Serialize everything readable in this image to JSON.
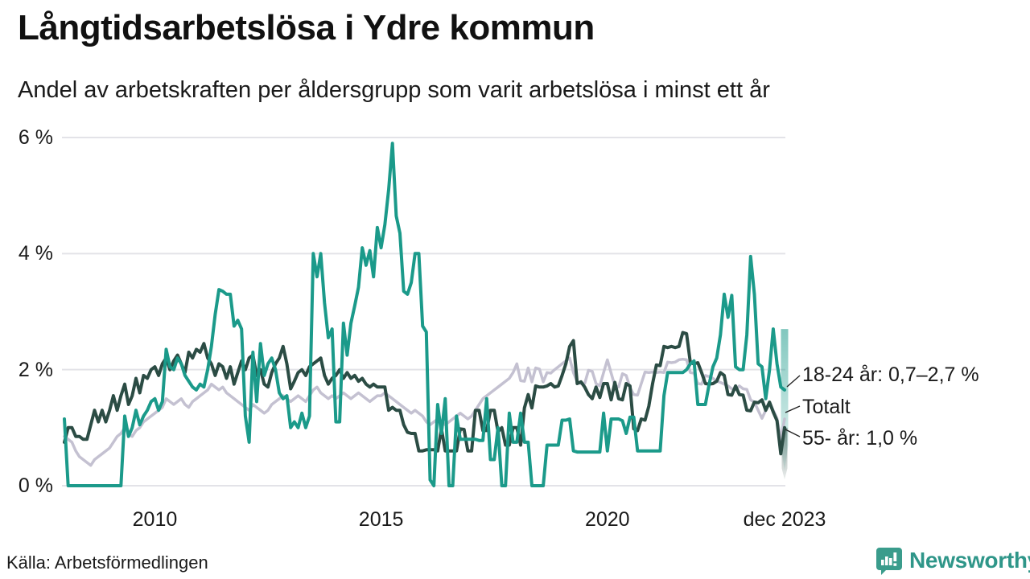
{
  "title": "Långtidsarbetslösa i Ydre kommun",
  "subtitle": "Andel av arbetskraften per åldersgrupp som varit arbetslösa i minst ett år",
  "source": "Källa: Arbetsförmedlingen",
  "branding": {
    "name": "Newsworthy"
  },
  "colors": {
    "teal": "#1b9a8a",
    "dark_green": "#2b4c44",
    "gray": "#c4c1d1",
    "gridline": "#e3e3e8",
    "text": "#1a1a1a",
    "brand_teal": "#2f9689"
  },
  "annotations": [
    {
      "label": "18-24 år: 0,7–2,7 %",
      "series": "18-24 år"
    },
    {
      "label": "Totalt",
      "series": "Totalt"
    },
    {
      "label": "55- år: 1,0 %",
      "series": "55- år"
    }
  ],
  "chart_data": {
    "type": "line",
    "title": "Långtidsarbetslösa i Ydre kommun",
    "subtitle": "Andel av arbetskraften per åldersgrupp som varit arbetslösa i minst ett år",
    "unit": "%",
    "x_start": "jan 2008",
    "x_end": "dec 2023",
    "points_per_year": 12,
    "ylim": [
      0,
      6.2
    ],
    "grid": "horizontal-only",
    "legend_position": "right-end-labels",
    "y_ticks": [
      {
        "label": "0 %",
        "value": 0
      },
      {
        "label": "2 %",
        "value": 2
      },
      {
        "label": "4 %",
        "value": 4
      },
      {
        "label": "6 %",
        "value": 6
      }
    ],
    "x_ticks": [
      {
        "label": "2010",
        "month_index": 24
      },
      {
        "label": "2015",
        "month_index": 84
      },
      {
        "label": "2020",
        "month_index": 144
      },
      {
        "label": "dec 2023",
        "month_index": 191
      }
    ],
    "series": [
      {
        "name": "Totalt",
        "color": "#c4c1d1",
        "width": 3.5,
        "values": [
          0.85,
          0.8,
          0.75,
          0.6,
          0.5,
          0.45,
          0.4,
          0.35,
          0.45,
          0.5,
          0.55,
          0.6,
          0.65,
          0.75,
          0.85,
          0.9,
          1,
          0.9,
          0.85,
          0.95,
          1,
          1.1,
          1.15,
          1.2,
          1.25,
          1.3,
          1.35,
          1.5,
          1.45,
          1.4,
          1.45,
          1.5,
          1.4,
          1.35,
          1.45,
          1.5,
          1.55,
          1.6,
          1.65,
          1.75,
          1.7,
          1.65,
          1.7,
          1.6,
          1.55,
          1.5,
          1.45,
          1.4,
          1.35,
          1.3,
          1.4,
          1.35,
          1.3,
          1.25,
          1.3,
          1.4,
          1.45,
          1.5,
          1.55,
          1.5,
          1.45,
          1.5,
          1.55,
          1.5,
          1.45,
          1.55,
          1.65,
          1.7,
          1.6,
          1.55,
          1.5,
          1.55,
          1.5,
          1.55,
          1.6,
          1.55,
          1.5,
          1.55,
          1.6,
          1.55,
          1.5,
          1.45,
          1.5,
          1.55,
          1.55,
          1.6,
          1.55,
          1.5,
          1.45,
          1.4,
          1.35,
          1.3,
          1.25,
          1.3,
          1.25,
          1.2,
          1.1,
          1.05,
          1.1,
          1.15,
          1.1,
          1.05,
          1.1,
          1.15,
          1.2,
          1.25,
          1.2,
          1.15,
          1.2,
          1.3,
          1.4,
          1.5,
          1.55,
          1.6,
          1.65,
          1.7,
          1.75,
          1.8,
          1.85,
          1.95,
          2.1,
          1.81,
          1.8,
          2.03,
          1.79,
          2.03,
          2.01,
          1.79,
          1.95,
          1.94,
          2,
          2.05,
          2.1,
          2.15,
          2.2,
          1.95,
          1.79,
          1.76,
          1.76,
          1.99,
          1.97,
          1.76,
          1.72,
          1.95,
          2.17,
          1.94,
          1.72,
          1.7,
          1.93,
          1.9,
          1.69,
          1.57,
          1.56,
          1.76,
          1.96,
          1.95,
          1.96,
          1.95,
          1.96,
          1.95,
          2.13,
          2.12,
          2.13,
          2.17,
          2.18,
          2.17,
          1.95,
          1.94,
          1.76,
          1.75,
          1.9,
          1.88,
          1.85,
          1.8,
          1.78,
          1.75,
          1.72,
          1.67,
          1.66,
          1.72,
          1.67,
          1.66,
          1.48,
          1.44,
          1.3,
          1.16,
          1.3,
          1.44,
          1.3,
          1.16,
          0.8,
          1.15
        ]
      },
      {
        "name": "55- år",
        "color": "#2b4c44",
        "width": 4,
        "values": [
          0.75,
          1,
          1,
          0.85,
          0.85,
          0.8,
          0.8,
          1.05,
          1.3,
          1.1,
          1.3,
          1.1,
          1.3,
          1.55,
          1.3,
          1.55,
          1.75,
          1.4,
          1.55,
          1.85,
          1.6,
          1.9,
          1.85,
          2,
          2.05,
          1.9,
          2.1,
          2.2,
          2,
          2.15,
          2.25,
          2.1,
          1.95,
          2.3,
          2.2,
          2.35,
          2.3,
          2.45,
          2.2,
          2.1,
          1.9,
          2.1,
          2.05,
          1.85,
          2.05,
          1.75,
          1.95,
          2.15,
          2,
          2.2,
          2.25,
          1.9,
          2,
          1.75,
          1.7,
          1.95,
          2.1,
          2.2,
          2.4,
          2.1,
          1.67,
          1.8,
          1.95,
          2,
          1.9,
          2.05,
          2.1,
          2.15,
          2.2,
          1.9,
          1.75,
          1.85,
          1.9,
          2,
          1.85,
          1.95,
          1.85,
          1.9,
          1.8,
          1.85,
          1.75,
          1.7,
          1.75,
          1.7,
          1.7,
          1.7,
          1.3,
          1.35,
          1.3,
          1.3,
          1.05,
          0.92,
          0.9,
          0.9,
          0.6,
          0.6,
          0.62,
          0.62,
          0.62,
          0.6,
          0.98,
          0.6,
          0.6,
          0.6,
          0.6,
          0.98,
          0.97,
          0.6,
          0.6,
          1.3,
          1.3,
          0.95,
          0.95,
          1.3,
          1.3,
          0.93,
          1,
          0.7,
          0.7,
          1,
          1,
          0.7,
          1.34,
          1.57,
          1.34,
          1.72,
          1.7,
          1.7,
          1.72,
          1.76,
          1.7,
          1.72,
          1.9,
          2.1,
          2.4,
          2.5,
          1.76,
          1.79,
          1.7,
          1.57,
          1.5,
          1.7,
          1.52,
          1.76,
          1.76,
          1.48,
          1.78,
          1.5,
          1.48,
          1.76,
          1.72,
          0.98,
          0.95,
          1.15,
          1.13,
          1.37,
          1.76,
          2.08,
          2.07,
          2.4,
          2.38,
          2.4,
          2.38,
          2.4,
          2.64,
          2.62,
          2.12,
          2.1,
          2.12,
          1.95,
          1.76,
          1.75,
          1.76,
          1.8,
          1.95,
          1.9,
          1.57,
          1.56,
          1.72,
          1.57,
          1.56,
          1.3,
          1.29,
          1.44,
          1.43,
          1.48,
          1.3,
          1.44,
          1.27,
          1.12,
          0.55,
          1
        ]
      },
      {
        "name": "18-24 år",
        "color": "#1b9a8a",
        "width": 4,
        "values": [
          1.15,
          0,
          0,
          0,
          0,
          0,
          0,
          0,
          0,
          0,
          0,
          0,
          0,
          0,
          0,
          0,
          1.2,
          0.85,
          1,
          1.3,
          1.05,
          1.2,
          1.3,
          1.45,
          1.5,
          1.3,
          1.45,
          2.35,
          2.05,
          2,
          2.2,
          2.1,
          1.9,
          1.8,
          1.7,
          1.65,
          1.75,
          1.7,
          2,
          2.4,
          2.95,
          3.38,
          3.35,
          3.3,
          3.3,
          2.75,
          2.85,
          2.7,
          1.2,
          0.75,
          2.3,
          1.45,
          2.45,
          1.9,
          2.1,
          2.2,
          2,
          1.6,
          1.5,
          1.55,
          1,
          1.1,
          1,
          1.25,
          1,
          1.2,
          4,
          3.6,
          4,
          3.15,
          2.55,
          2.7,
          1.1,
          1.1,
          2.8,
          2.25,
          2.8,
          3.1,
          3.42,
          4.1,
          3.8,
          4.05,
          3.6,
          4.45,
          4.1,
          4.5,
          5.1,
          5.9,
          4.65,
          4.35,
          3.35,
          3.3,
          3.5,
          4,
          4,
          2.75,
          2.65,
          0.1,
          0,
          1.4,
          0.9,
          1.5,
          0,
          0,
          1.2,
          0.8,
          0.8,
          0.8,
          0.8,
          0.8,
          0.78,
          0.78,
          1.5,
          0.45,
          0.45,
          1,
          0,
          0,
          1.25,
          0.75,
          0.75,
          1.25,
          0.75,
          0.75,
          0,
          0,
          0,
          0,
          0.7,
          0.7,
          0.7,
          0.7,
          1.13,
          1.13,
          1.15,
          0.6,
          0.58,
          0.58,
          0.58,
          0.58,
          0.58,
          0.58,
          0.58,
          1.25,
          0.6,
          1.15,
          1.15,
          1.15,
          1.12,
          0.9,
          1.18,
          1.18,
          0.6,
          0.6,
          0.6,
          0.6,
          0.6,
          0.6,
          0.6,
          1.55,
          1.95,
          1.95,
          1.95,
          1.95,
          1.95,
          2,
          2.1,
          2.15,
          1.4,
          1.4,
          1.4,
          1.75,
          2.05,
          2.2,
          2.6,
          3.3,
          2.9,
          3.28,
          2.05,
          2,
          2,
          2.6,
          3.95,
          3.3,
          2.1,
          2.05,
          1.5,
          2,
          2.7,
          2.1,
          1.7,
          1.65
        ]
      }
    ],
    "end_ranges": [
      {
        "series": "18-24 år",
        "low": 0.7,
        "high": 2.7,
        "label_value": "0,7–2,7 %"
      },
      {
        "series": "55- år",
        "low": 0.3,
        "high": 1.0,
        "label_value": "1,0 %"
      }
    ]
  }
}
